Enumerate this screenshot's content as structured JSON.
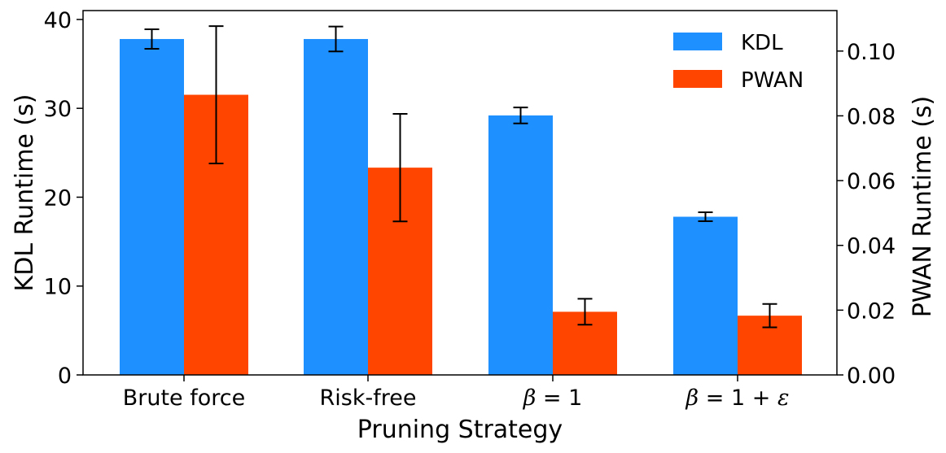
{
  "chart_data": {
    "type": "bar",
    "xlabel": "Pruning Strategy",
    "ylabel_left": "KDL Runtime (s)",
    "ylabel_right": "PWAN Runtime (s)",
    "categories": [
      "Brute force",
      "Risk-free",
      "β = 1",
      "β = 1 + ε"
    ],
    "ylim_left": [
      0,
      41
    ],
    "ylim_right": [
      0,
      0.1125
    ],
    "yticks_left": [
      0,
      10,
      20,
      30,
      40
    ],
    "yticks_left_labels": [
      "0",
      "10",
      "20",
      "30",
      "40"
    ],
    "yticks_right": [
      0.0,
      0.02,
      0.04,
      0.06,
      0.08,
      0.1
    ],
    "yticks_right_labels": [
      "0.00",
      "0.02",
      "0.04",
      "0.06",
      "0.08",
      "0.10"
    ],
    "legend_position": "top-right",
    "series": [
      {
        "name": "KDL",
        "axis": "left",
        "color": "#1e90ff",
        "values": [
          37.8,
          37.8,
          29.2,
          17.8
        ],
        "errors": [
          1.1,
          1.4,
          0.9,
          0.5
        ]
      },
      {
        "name": "PWAN",
        "axis": "right",
        "color": "#ff4500",
        "values": [
          0.0865,
          0.064,
          0.0195,
          0.0183
        ],
        "errors": [
          0.0212,
          0.0166,
          0.004,
          0.0036
        ]
      }
    ]
  }
}
